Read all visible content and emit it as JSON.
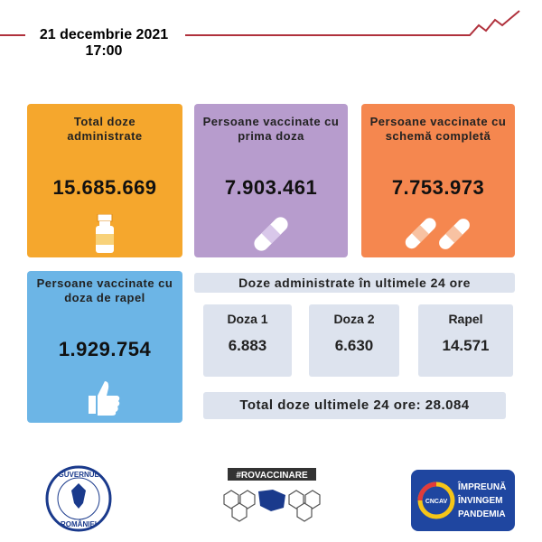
{
  "header": {
    "date": "21 decembrie 2021",
    "time": "17:00"
  },
  "cards": [
    {
      "label": "Total doze administrate",
      "value": "15.685.669"
    },
    {
      "label": "Persoane vaccinate cu prima doza",
      "value": "7.903.461"
    },
    {
      "label": "Persoane vaccinate cu schemă completă",
      "value": "7.753.973"
    },
    {
      "label": "Persoane  vaccinate cu doza de rapel",
      "value": "1.929.754"
    }
  ],
  "last24": {
    "title": "Doze administrate în ultimele 24 ore",
    "items": [
      {
        "label": "Doza 1",
        "value": "6.883"
      },
      {
        "label": "Doza 2",
        "value": "6.630"
      },
      {
        "label": "Rapel",
        "value": "14.571"
      }
    ],
    "total_label": "Total doze ultimele 24 ore:",
    "total_value": "28.084"
  },
  "footer": {
    "gov_top": "GUVERNUL",
    "gov_bottom": "ROMÂNIEI",
    "hashtag": "#ROVACCINARE",
    "cncav": "CNCAV",
    "slogan": [
      "ÎMPREUNĂ",
      "ÎNVINGEM",
      "PANDEMIA"
    ]
  }
}
